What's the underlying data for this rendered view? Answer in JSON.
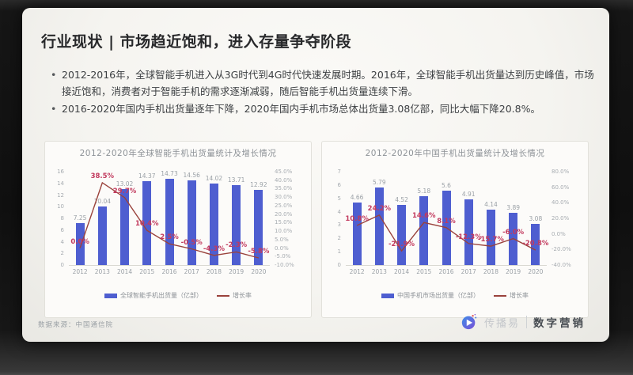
{
  "slide": {
    "title": "行业现状 | 市场趋近饱和，进入存量争夺阶段",
    "bullets": [
      "2012-2016年，全球智能手机进入从3G时代到4G时代快速发展时期。2016年，全球智能手机出货量达到历史峰值，市场接近饱和，消费者对于智能手机的需求逐渐减弱，随后智能手机出货量连续下滑。",
      "2016-2020年国内手机出货量逐年下降，2020年国内手机市场总体出货量3.08亿部，同比大幅下降20.8%。"
    ],
    "source": "数据来源：中国通信院"
  },
  "footer_logo": {
    "brand": "传播易",
    "tagline": "数字营销"
  },
  "colors": {
    "bar": "#4e5ed0",
    "line": "#9a423c",
    "pct_label": "#c23a5e",
    "slide_bg": "#f5f4f0",
    "text_dark": "#28292b"
  },
  "chart_data": [
    {
      "type": "bar+line",
      "title": "2012-2020年全球智能手机出货量统计及增长情况",
      "categories": [
        "2012",
        "2013",
        "2014",
        "2015",
        "2016",
        "2017",
        "2018",
        "2019",
        "2020"
      ],
      "series": [
        {
          "name": "全球智能手机出货量（亿部）",
          "type": "bar",
          "values": [
            7.25,
            10.04,
            13.02,
            14.37,
            14.73,
            14.56,
            14.02,
            13.71,
            12.92
          ],
          "labels": [
            "7.25",
            "10.04",
            "13.02",
            "14.37",
            "14.73",
            "14.56",
            "14.02",
            "13.71",
            "12.92"
          ]
        },
        {
          "name": "增长率",
          "type": "line",
          "values": [
            0.0,
            38.5,
            29.7,
            10.4,
            2.5,
            -0.5,
            -4.3,
            -2.3,
            -5.8
          ],
          "labels": [
            "0.0%",
            "38.5%",
            "29.7%",
            "10.4%",
            "2.5%",
            "-0.5%",
            "-4.3%",
            "-2.3%",
            "-5.8%"
          ]
        }
      ],
      "bar_axis": {
        "min": 0,
        "max": 16,
        "ticks": [
          "16",
          "14",
          "12",
          "10",
          "8",
          "6",
          "4",
          "2",
          "0"
        ]
      },
      "pct_axis": {
        "min": -10,
        "max": 45,
        "ticks": [
          "45.0%",
          "40.0%",
          "35.0%",
          "30.0%",
          "25.0%",
          "20.0%",
          "15.0%",
          "10.0%",
          "5.0%",
          "0.0%",
          "-5.0%",
          "-10.0%"
        ]
      },
      "legend_position": "bottom",
      "grid": false
    },
    {
      "type": "bar+line",
      "title": "2012-2020年中国手机出货量统计及增长情况",
      "categories": [
        "2012",
        "2013",
        "2014",
        "2015",
        "2016",
        "2017",
        "2018",
        "2019",
        "2020"
      ],
      "series": [
        {
          "name": "中国手机市场出货量（亿部）",
          "type": "bar",
          "values": [
            4.66,
            5.79,
            4.52,
            5.18,
            5.6,
            4.91,
            4.14,
            3.89,
            3.08
          ],
          "labels": [
            "4.66",
            "5.79",
            "4.52",
            "5.18",
            "5.6",
            "4.91",
            "4.14",
            "3.89",
            "3.08"
          ]
        },
        {
          "name": "增长率",
          "type": "line",
          "values": [
            10.8,
            24.2,
            -21.9,
            14.6,
            8.1,
            -12.3,
            -15.7,
            -6.0,
            -20.8
          ],
          "labels": [
            "10.8%",
            "24.2%",
            "-21.9%",
            "14.6%",
            "8.1%",
            "-12.3%",
            "-15.7%",
            "-6.0%",
            "-20.8%"
          ]
        }
      ],
      "bar_axis": {
        "min": 0,
        "max": 7,
        "ticks": [
          "7",
          "6",
          "5",
          "4",
          "3",
          "2",
          "1",
          "0"
        ]
      },
      "pct_axis": {
        "min": -40,
        "max": 80,
        "ticks": [
          "80.0%",
          "60.0%",
          "40.0%",
          "20.0%",
          "0.0%",
          "-20.0%",
          "-40.0%"
        ]
      },
      "legend_position": "bottom",
      "grid": false
    }
  ]
}
